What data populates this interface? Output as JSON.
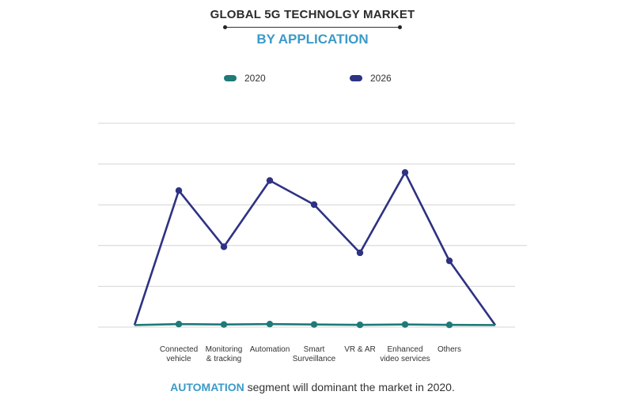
{
  "header": {
    "title": "GLOBAL 5G TECHNOLGY MARKET",
    "subtitle": "BY APPLICATION"
  },
  "footer": {
    "highlight": "AUTOMATION",
    "text": " segment will dominant the market in 2020."
  },
  "colors": {
    "series_2020": "#1f7a78",
    "series_2026": "#2e3283",
    "accent": "#3b9ac9"
  },
  "chart_data": {
    "type": "line",
    "title": "GLOBAL 5G TECHNOLGY MARKET",
    "subtitle": "BY APPLICATION",
    "xlabel": "",
    "ylabel": "",
    "grid": true,
    "legend_position": "top-center",
    "ylim": [
      0,
      100
    ],
    "categories": [
      "",
      "Connected vehicle",
      "Monitoring & tracking",
      "Automation",
      "Smart Surveillance",
      "VR & AR",
      "Enhanced video services",
      "Others",
      ""
    ],
    "series": [
      {
        "name": "2020",
        "values": [
          1,
          1.5,
          1.3,
          1.5,
          1.3,
          1.1,
          1.3,
          1.1,
          1
        ]
      },
      {
        "name": "2026",
        "values": [
          1,
          68,
          40,
          73,
          61,
          37,
          77,
          33,
          1
        ]
      }
    ]
  }
}
